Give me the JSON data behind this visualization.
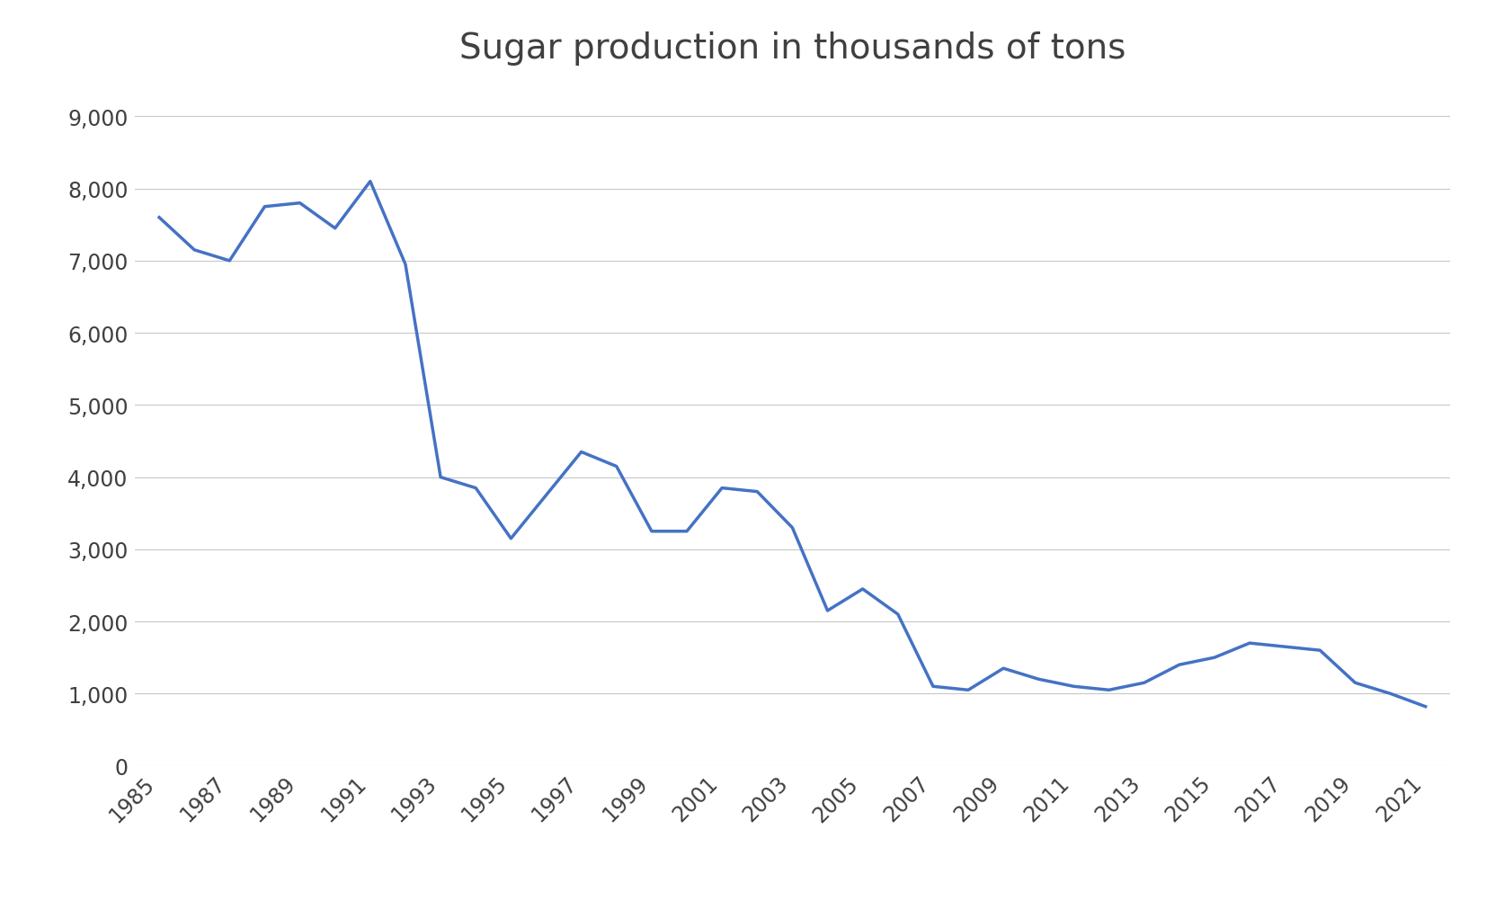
{
  "title": "Sugar production in thousands of tons",
  "title_fontsize": 28,
  "title_color": "#404040",
  "line_color": "#4472C4",
  "line_width": 2.5,
  "background_color": "#ffffff",
  "plot_bg_color": "#ffffff",
  "grid_color": "#c8c8c8",
  "years": [
    1985,
    1986,
    1987,
    1988,
    1989,
    1990,
    1991,
    1992,
    1993,
    1994,
    1995,
    1996,
    1997,
    1998,
    1999,
    2000,
    2001,
    2002,
    2003,
    2004,
    2005,
    2006,
    2007,
    2008,
    2009,
    2010,
    2011,
    2012,
    2013,
    2014,
    2015,
    2016,
    2017,
    2018,
    2019,
    2020,
    2021
  ],
  "values": [
    7600,
    7150,
    7000,
    7750,
    7800,
    7450,
    8100,
    6950,
    4000,
    3850,
    3150,
    3750,
    4350,
    4150,
    3250,
    3250,
    3850,
    3800,
    3300,
    2150,
    2450,
    2100,
    1100,
    1050,
    1350,
    1200,
    1100,
    1050,
    1150,
    1400,
    1500,
    1700,
    1650,
    1600,
    1150,
    1000,
    820
  ],
  "ylim": [
    0,
    9500
  ],
  "yticks": [
    0,
    1000,
    2000,
    3000,
    4000,
    5000,
    6000,
    7000,
    8000,
    9000
  ],
  "ytick_labels": [
    "0",
    "1,000",
    "2,000",
    "3,000",
    "4,000",
    "5,000",
    "6,000",
    "7,000",
    "8,000",
    "9,000"
  ],
  "xtick_years": [
    1985,
    1987,
    1989,
    1991,
    1993,
    1995,
    1997,
    1999,
    2001,
    2003,
    2005,
    2007,
    2009,
    2011,
    2013,
    2015,
    2017,
    2019,
    2021
  ],
  "tick_fontsize": 17,
  "ytick_fontsize": 17
}
